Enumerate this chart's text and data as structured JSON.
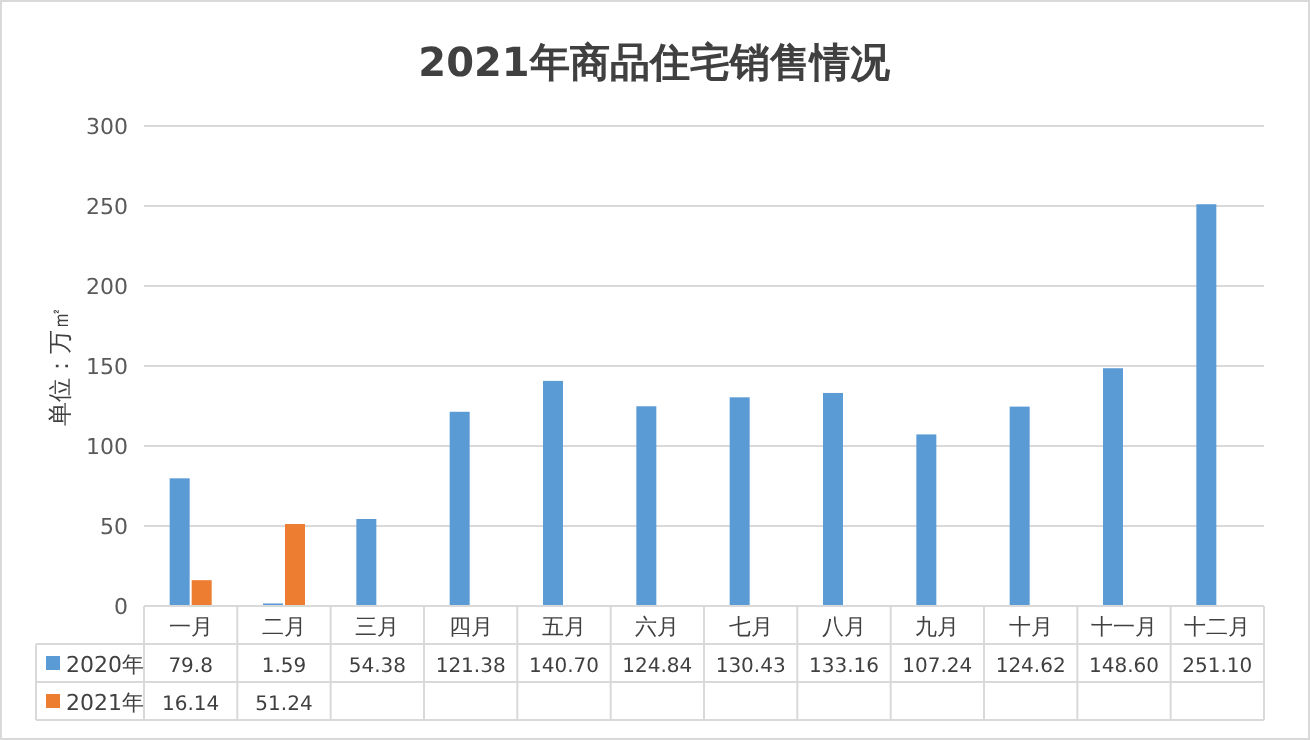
{
  "chart_data": {
    "type": "bar",
    "title": "2021年商品住宅销售情况",
    "ylabel": "单位：万㎡",
    "categories": [
      "一月",
      "二月",
      "三月",
      "四月",
      "五月",
      "六月",
      "七月",
      "八月",
      "九月",
      "十月",
      "十一月",
      "十二月"
    ],
    "series": [
      {
        "name": "2020年",
        "color": "#5b9bd5",
        "values": [
          79.8,
          1.59,
          54.38,
          121.38,
          140.7,
          124.84,
          130.43,
          133.16,
          107.24,
          124.62,
          148.6,
          251.1
        ],
        "value_labels": [
          "79.8",
          "1.59",
          "54.38",
          "121.38",
          "140.70",
          "124.84",
          "130.43",
          "133.16",
          "107.24",
          "124.62",
          "148.60",
          "251.10"
        ]
      },
      {
        "name": "2021年",
        "color": "#ed7d31",
        "values": [
          16.14,
          51.24,
          null,
          null,
          null,
          null,
          null,
          null,
          null,
          null,
          null,
          null
        ],
        "value_labels": [
          "16.14",
          "51.24",
          null,
          null,
          null,
          null,
          null,
          null,
          null,
          null,
          null,
          null
        ]
      }
    ],
    "ylim": [
      0,
      300
    ],
    "yticks": [
      0,
      50,
      100,
      150,
      200,
      250,
      300
    ],
    "grid": "y",
    "legend": "bottom"
  }
}
